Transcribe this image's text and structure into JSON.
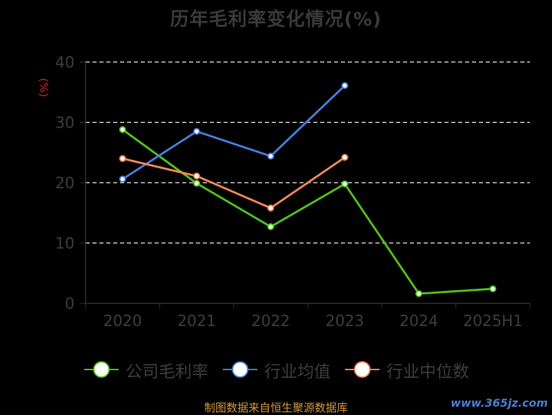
{
  "title": "历年毛利率变化情况(%)",
  "y_unit": "(%)",
  "footer": {
    "source": "制图数据来自恒生聚源数据库",
    "watermark": "www.365jz.com"
  },
  "legend": [
    {
      "label": "公司毛利率",
      "color": "#52c41a"
    },
    {
      "label": "行业均值",
      "color": "#4a7ee0"
    },
    {
      "label": "行业中位数",
      "color": "#f58a5a"
    }
  ],
  "chart_data": {
    "type": "line",
    "title": "历年毛利率变化情况(%)",
    "xlabel": "",
    "ylabel": "(%)",
    "categories": [
      "2020",
      "2021",
      "2022",
      "2023",
      "2024",
      "2025H1"
    ],
    "ylim": [
      0,
      40
    ],
    "yticks": [
      0,
      10,
      20,
      30,
      40
    ],
    "grid": true,
    "legend_position": "bottom",
    "series": [
      {
        "name": "公司毛利率",
        "color": "#52c41a",
        "values": [
          28.8,
          19.9,
          12.7,
          19.8,
          1.6,
          2.4
        ]
      },
      {
        "name": "行业均值",
        "color": "#4a7ee0",
        "values": [
          20.6,
          28.5,
          24.4,
          36.1,
          null,
          null
        ]
      },
      {
        "name": "行业中位数",
        "color": "#f58a5a",
        "values": [
          24.0,
          21.1,
          15.8,
          24.2,
          null,
          null
        ]
      }
    ]
  }
}
